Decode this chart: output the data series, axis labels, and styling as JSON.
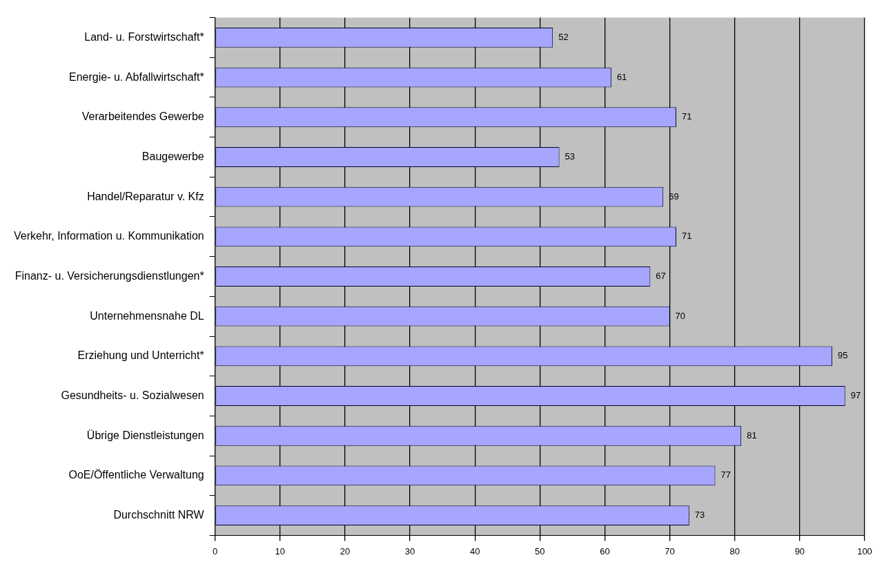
{
  "chart_data": {
    "type": "bar",
    "orientation": "horizontal",
    "categories": [
      "Land- u. Forstwirtschaft*",
      "Energie- u. Abfallwirtschaft*",
      "Verarbeitendes Gewerbe",
      "Baugewerbe",
      "Handel/Reparatur v. Kfz",
      "Verkehr, Information u. Kommunikation",
      "Finanz- u. Versicherungsdienstlungen*",
      "Unternehmensnahe DL",
      "Erziehung und Unterricht*",
      "Gesundheits- u. Sozialwesen",
      "Übrige Dienstleistungen",
      "OoE/Öffentliche Verwaltung",
      "Durchschnitt NRW"
    ],
    "values": [
      52,
      61,
      71,
      53,
      69,
      71,
      67,
      70,
      95,
      97,
      81,
      77,
      73
    ],
    "color": "#a6a6ff",
    "xlim": [
      0,
      100
    ],
    "xticks": [
      0,
      10,
      20,
      30,
      40,
      50,
      60,
      70,
      80,
      90,
      100
    ],
    "grid": "x",
    "legend": false,
    "data_labels": true
  }
}
